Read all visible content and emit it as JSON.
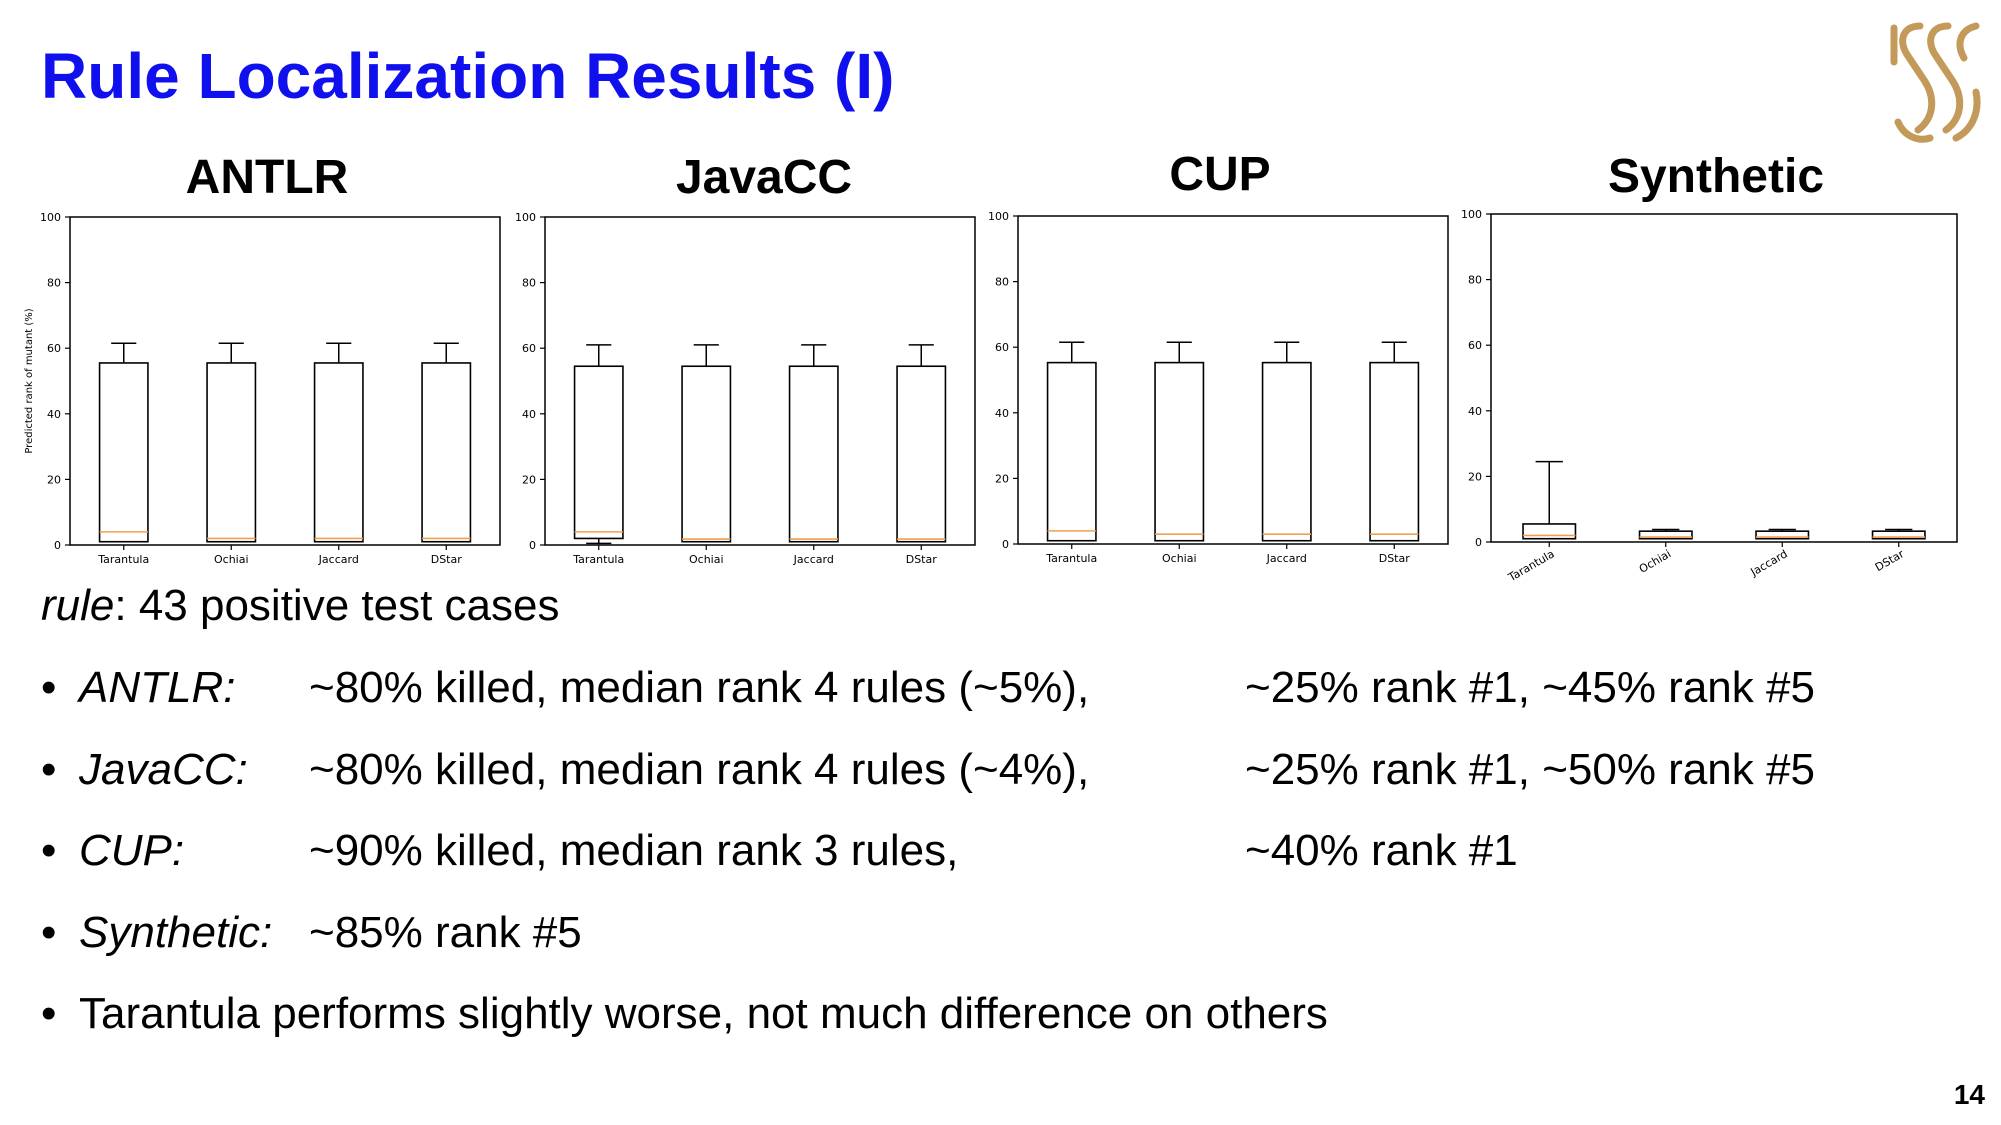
{
  "slide": {
    "title": "Rule Localization Results (I)",
    "page_number": "14"
  },
  "chart_titles": [
    "ANTLR",
    "JavaCC",
    "CUP",
    "Synthetic"
  ],
  "chart_data": [
    {
      "type": "box",
      "title": "ANTLR",
      "ylabel": "Predicted rank of mutant (%)",
      "xlabel": "",
      "ylim": [
        0,
        100
      ],
      "yticks": [
        0,
        20,
        40,
        60,
        80,
        100
      ],
      "categories": [
        "Tarantula",
        "Ochiai",
        "Jaccard",
        "DStar"
      ],
      "boxes": [
        {
          "whisker_low": 1,
          "q1": 1,
          "median": 4,
          "q3": 55.5,
          "whisker_high": 61.5
        },
        {
          "whisker_low": 1,
          "q1": 1,
          "median": 2,
          "q3": 55.5,
          "whisker_high": 61.5
        },
        {
          "whisker_low": 1,
          "q1": 1,
          "median": 2,
          "q3": 55.5,
          "whisker_high": 61.5
        },
        {
          "whisker_low": 1,
          "q1": 1,
          "median": 2,
          "q3": 55.5,
          "whisker_high": 61.5
        }
      ],
      "rotate_xticks": false
    },
    {
      "type": "box",
      "title": "JavaCC",
      "ylabel": "",
      "xlabel": "",
      "ylim": [
        0,
        100
      ],
      "yticks": [
        0,
        20,
        40,
        60,
        80,
        100
      ],
      "categories": [
        "Tarantula",
        "Ochiai",
        "Jaccard",
        "DStar"
      ],
      "boxes": [
        {
          "whisker_low": 0.5,
          "q1": 2,
          "median": 4,
          "q3": 54.5,
          "whisker_high": 61
        },
        {
          "whisker_low": 1,
          "q1": 1,
          "median": 1.8,
          "q3": 54.5,
          "whisker_high": 61
        },
        {
          "whisker_low": 1,
          "q1": 1,
          "median": 1.8,
          "q3": 54.5,
          "whisker_high": 61
        },
        {
          "whisker_low": 1,
          "q1": 1,
          "median": 1.8,
          "q3": 54.5,
          "whisker_high": 61
        }
      ],
      "rotate_xticks": false
    },
    {
      "type": "box",
      "title": "CUP",
      "ylabel": "",
      "xlabel": "",
      "ylim": [
        0,
        100
      ],
      "yticks": [
        0,
        20,
        40,
        60,
        80,
        100
      ],
      "categories": [
        "Tarantula",
        "Ochiai",
        "Jaccard",
        "DStar"
      ],
      "boxes": [
        {
          "whisker_low": 1,
          "q1": 1,
          "median": 4,
          "q3": 55.3,
          "whisker_high": 61.5
        },
        {
          "whisker_low": 1,
          "q1": 1,
          "median": 3,
          "q3": 55.3,
          "whisker_high": 61.5
        },
        {
          "whisker_low": 1,
          "q1": 1,
          "median": 3,
          "q3": 55.3,
          "whisker_high": 61.5
        },
        {
          "whisker_low": 1,
          "q1": 1,
          "median": 3,
          "q3": 55.3,
          "whisker_high": 61.5
        }
      ],
      "rotate_xticks": false
    },
    {
      "type": "box",
      "title": "Synthetic",
      "ylabel": "",
      "xlabel": "",
      "ylim": [
        0,
        100
      ],
      "yticks": [
        0,
        20,
        40,
        60,
        80,
        100
      ],
      "categories": [
        "Tarantula",
        "Ochiai",
        "Jaccard",
        "DStar"
      ],
      "boxes": [
        {
          "whisker_low": 1,
          "q1": 1,
          "median": 2,
          "q3": 5.5,
          "whisker_high": 24.5
        },
        {
          "whisker_low": 1,
          "q1": 1,
          "median": 1.5,
          "q3": 3.3,
          "whisker_high": 3.8
        },
        {
          "whisker_low": 1,
          "q1": 1,
          "median": 1.5,
          "q3": 3.3,
          "whisker_high": 3.8
        },
        {
          "whisker_low": 1,
          "q1": 1,
          "median": 1.5,
          "q3": 3.3,
          "whisker_high": 3.8
        }
      ],
      "rotate_xticks": true
    }
  ],
  "colors": {
    "title": "#1010ee",
    "median": "#f0a050",
    "logo": "#c49a5a"
  },
  "body": {
    "intro_emph": "rule",
    "intro_rest": ": 43 positive test cases",
    "bullets": [
      {
        "label": "ANTLR:",
        "col1": "~80% killed, median rank 4 rules (~5%),",
        "col2": "~25% rank #1, ~45% rank #5"
      },
      {
        "label": "JavaCC:",
        "col1": "~80% killed, median rank 4 rules (~4%),",
        "col2": "~25% rank #1, ~50% rank #5"
      },
      {
        "label": "CUP:",
        "col1": "~90% killed, median rank 3 rules,",
        "col2": "~40% rank #1"
      },
      {
        "label": "Synthetic:",
        "col1": "~85% rank #5",
        "col2": ""
      }
    ],
    "final_bullet": "Tarantula performs slightly worse, not much difference on others",
    "bullet_symbol": "•"
  }
}
